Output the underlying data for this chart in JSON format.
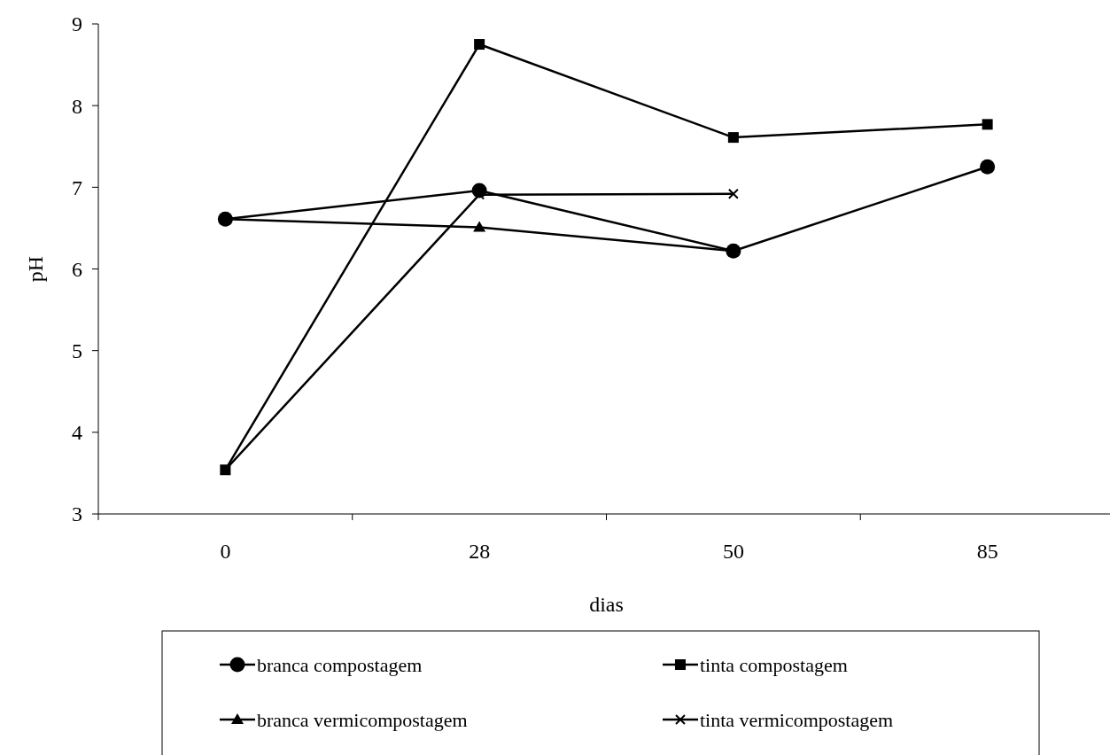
{
  "chart_data": {
    "type": "line",
    "xlabel": "dias",
    "ylabel": "pH",
    "categories": [
      "0",
      "28",
      "50",
      "85"
    ],
    "ylim": [
      3,
      9
    ],
    "yticks": [
      3,
      4,
      5,
      6,
      7,
      8,
      9
    ],
    "grid": false,
    "legend": "bottom",
    "line_style": "solid",
    "series": [
      {
        "name": "branca compostagem",
        "color": "#000000",
        "marker": "circle",
        "values": [
          6.61,
          6.96,
          6.22,
          7.25
        ]
      },
      {
        "name": "tinta compostagem",
        "color": "#000000",
        "marker": "square",
        "values": [
          3.54,
          8.75,
          7.61,
          7.77
        ]
      },
      {
        "name": "branca vermicompostagem",
        "color": "#000000",
        "marker": "triangle",
        "values": [
          6.61,
          6.51,
          6.22,
          null
        ]
      },
      {
        "name": "tinta vermicompostagem",
        "color": "#000000",
        "marker": "cross",
        "values": [
          3.54,
          6.91,
          6.92,
          null
        ]
      }
    ]
  }
}
